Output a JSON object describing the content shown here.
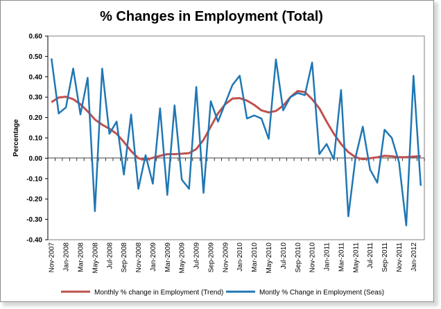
{
  "chart_data": {
    "type": "line",
    "title": "% Changes in Employment (Total)",
    "xlabel": "",
    "ylabel": "Percentage",
    "ylim": [
      -0.4,
      0.6
    ],
    "y_ticks": [
      "0.60",
      "0.50",
      "0.40",
      "0.30",
      "0.20",
      "0.10",
      "0.00",
      "-0.10",
      "-0.20",
      "-0.30",
      "-0.40"
    ],
    "x_tick_labels": [
      "Nov-2007",
      "Jan-2008",
      "Mar-2008",
      "May-2008",
      "Jul-2008",
      "Sep-2008",
      "Nov-2008",
      "Jan-2009",
      "Mar-2009",
      "May-2009",
      "Jul-2009",
      "Sep-2009",
      "Nov-2009",
      "Jan-2010",
      "Mar-2010",
      "May-2010",
      "Jul-2010",
      "Sep-2010",
      "Nov-2010",
      "Jan-2011",
      "Mar-2011",
      "May-2011",
      "Jul-2011",
      "Sep-2011",
      "Nov-2011",
      "Jan-2012"
    ],
    "x": [
      "Nov-2007",
      "Dec-2007",
      "Jan-2008",
      "Feb-2008",
      "Mar-2008",
      "Apr-2008",
      "May-2008",
      "Jun-2008",
      "Jul-2008",
      "Aug-2008",
      "Sep-2008",
      "Oct-2008",
      "Nov-2008",
      "Dec-2008",
      "Jan-2009",
      "Feb-2009",
      "Mar-2009",
      "Apr-2009",
      "May-2009",
      "Jun-2009",
      "Jul-2009",
      "Aug-2009",
      "Sep-2009",
      "Oct-2009",
      "Nov-2009",
      "Dec-2009",
      "Jan-2010",
      "Feb-2010",
      "Mar-2010",
      "Apr-2010",
      "May-2010",
      "Jun-2010",
      "Jul-2010",
      "Aug-2010",
      "Sep-2010",
      "Oct-2010",
      "Nov-2010",
      "Dec-2010",
      "Jan-2011",
      "Feb-2011",
      "Mar-2011",
      "Apr-2011",
      "May-2011",
      "Jun-2011",
      "Jul-2011",
      "Aug-2011",
      "Sep-2011",
      "Oct-2011",
      "Nov-2011",
      "Dec-2011",
      "Jan-2012",
      "Feb-2012"
    ],
    "series": [
      {
        "name": "Monthly % change in Employment (Trend)",
        "color": "#c0504d",
        "values": [
          0.275,
          0.298,
          0.302,
          0.29,
          0.265,
          0.23,
          0.19,
          0.165,
          0.145,
          0.12,
          0.08,
          0.035,
          0.0,
          -0.008,
          0.002,
          0.012,
          0.02,
          0.02,
          0.022,
          0.025,
          0.045,
          0.09,
          0.155,
          0.22,
          0.265,
          0.293,
          0.295,
          0.283,
          0.262,
          0.235,
          0.225,
          0.232,
          0.258,
          0.3,
          0.33,
          0.325,
          0.29,
          0.245,
          0.18,
          0.12,
          0.07,
          0.03,
          0.005,
          -0.005,
          0.0,
          0.005,
          0.012,
          0.01,
          0.005,
          0.005,
          0.008,
          0.01
        ]
      },
      {
        "name": "Montly % Change in Employment (Seas)",
        "color": "#1f77b4",
        "values": [
          0.49,
          0.22,
          0.25,
          0.44,
          0.215,
          0.395,
          -0.26,
          0.44,
          0.12,
          0.18,
          -0.08,
          0.215,
          -0.15,
          0.015,
          -0.125,
          0.245,
          -0.18,
          0.26,
          -0.105,
          -0.15,
          0.35,
          -0.17,
          0.28,
          0.18,
          0.27,
          0.36,
          0.405,
          0.195,
          0.21,
          0.195,
          0.095,
          0.485,
          0.235,
          0.3,
          0.32,
          0.31,
          0.47,
          0.02,
          0.07,
          -0.005,
          0.335,
          -0.285,
          0.005,
          0.155,
          -0.055,
          -0.12,
          0.14,
          0.1,
          -0.02,
          -0.33,
          0.405,
          -0.135
        ]
      }
    ]
  }
}
